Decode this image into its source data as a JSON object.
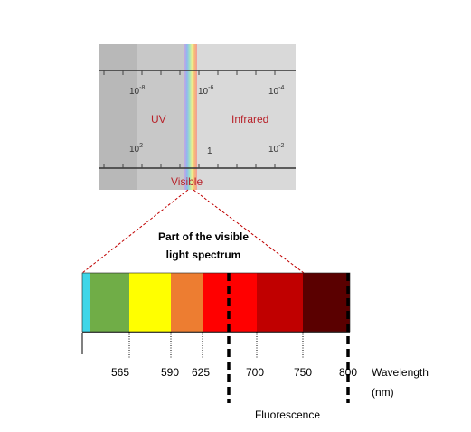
{
  "em_chart": {
    "scale_top": [
      {
        "base": "10",
        "exp": "-8"
      },
      {
        "base": "10",
        "exp": "-6"
      },
      {
        "base": "10",
        "exp": "-4"
      }
    ],
    "scale_bottom": [
      {
        "base": "10",
        "exp": "2"
      },
      {
        "base": "1",
        "exp": ""
      },
      {
        "base": "10",
        "exp": "-2"
      }
    ],
    "uv_label": "UV",
    "infrared_label": "Infrared",
    "visible_label": "Visible",
    "label_color": "#b8222a"
  },
  "callout": {
    "line1": "Part of the visible",
    "line2": "light spectrum"
  },
  "spectrum": {
    "bands": [
      {
        "color": "#3fd6e8"
      },
      {
        "color": "#70ad47"
      },
      {
        "color": "#ffff00"
      },
      {
        "color": "#ed7d31"
      },
      {
        "color": "#ff0000"
      },
      {
        "color": "#ff0000"
      },
      {
        "color": "#c00000"
      },
      {
        "color": "#5a0000"
      }
    ],
    "ticks": [
      "565",
      "590",
      "625",
      "700",
      "750",
      "800"
    ],
    "axis_label_line1": "Wavelength",
    "axis_label_line2": "(nm)",
    "fluorescence_label": "Fluorescence"
  }
}
